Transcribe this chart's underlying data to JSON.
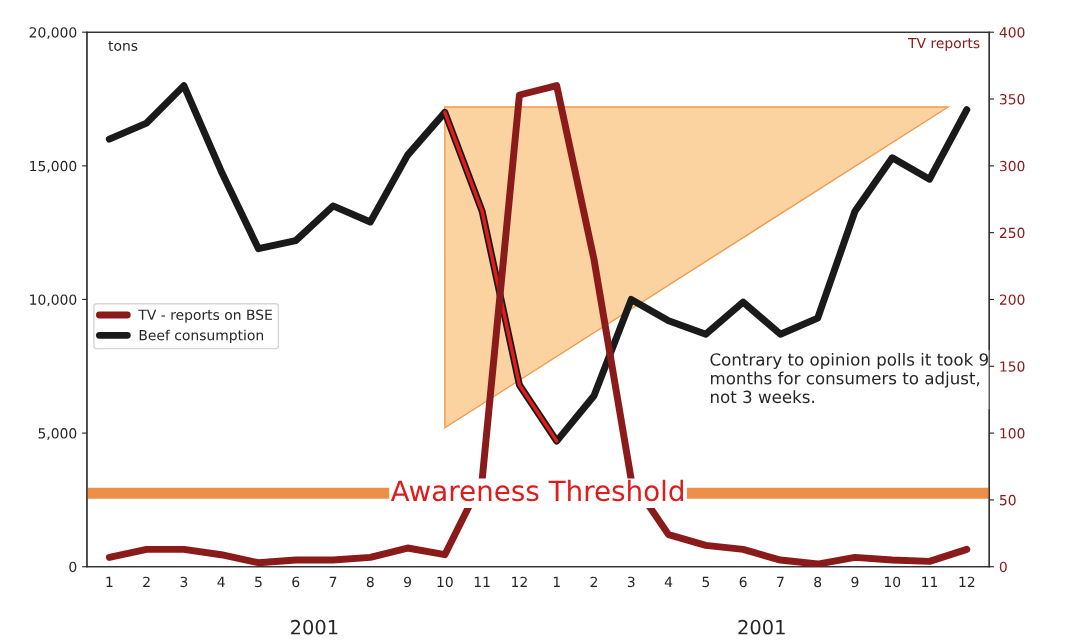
{
  "chart_data": {
    "type": "line",
    "xlabel": null,
    "ylabel": "tons",
    "y2label": "TV reports",
    "categories": [
      "1",
      "2",
      "3",
      "4",
      "5",
      "6",
      "7",
      "8",
      "9",
      "10",
      "11",
      "12",
      "1",
      "2",
      "3",
      "4",
      "5",
      "6",
      "7",
      "8",
      "9",
      "10",
      "11",
      "12"
    ],
    "series": [
      {
        "name": "TV - reports on BSE",
        "color": "#8b1a1a",
        "axis": "y2",
        "values": [
          7,
          13,
          13,
          9,
          3,
          5,
          5,
          7,
          14,
          9,
          65,
          353,
          360,
          230,
          65,
          24,
          16,
          13,
          5,
          2,
          7,
          5,
          4,
          13
        ]
      },
      {
        "name": "Beef consumption",
        "color": "#1a1a1a",
        "values": [
          16000,
          16600,
          18000,
          14800,
          11900,
          12200,
          13500,
          12900,
          15400,
          17000,
          13300,
          6800,
          4700,
          6400,
          10000,
          9200,
          8700,
          9900,
          8700,
          9300,
          13300,
          15300,
          14500,
          17100
        ]
      },
      {
        "color": "#e01b1b",
        "values": [
          null,
          null,
          null,
          null,
          null,
          null,
          null,
          null,
          null,
          17000,
          13300,
          6800,
          4700,
          null,
          null,
          null,
          null,
          null,
          null,
          null,
          null,
          null,
          null,
          null
        ]
      }
    ],
    "ylim": [
      0,
      20000
    ],
    "yticks": [
      0,
      {
        "value": 5000,
        "label": "5,000"
      },
      {
        "value": 10000,
        "label": "10,000"
      },
      {
        "value": 15000,
        "label": "15,000"
      },
      {
        "value": 20000,
        "label": "20,000"
      }
    ],
    "y2lim": [
      0,
      400
    ],
    "y2ticks": [
      0,
      50,
      100,
      150,
      200,
      250,
      300,
      350,
      400
    ],
    "ref_lines": [
      {
        "axis": "y2",
        "value": 55,
        "label": "Awareness Threshold",
        "color": "#e8731c"
      }
    ],
    "annotations": [
      "2001",
      "2001",
      "Contrary to opinion polls it took 9 months for consumers to adjust, not 3 weeks."
    ],
    "legend": "center left"
  }
}
